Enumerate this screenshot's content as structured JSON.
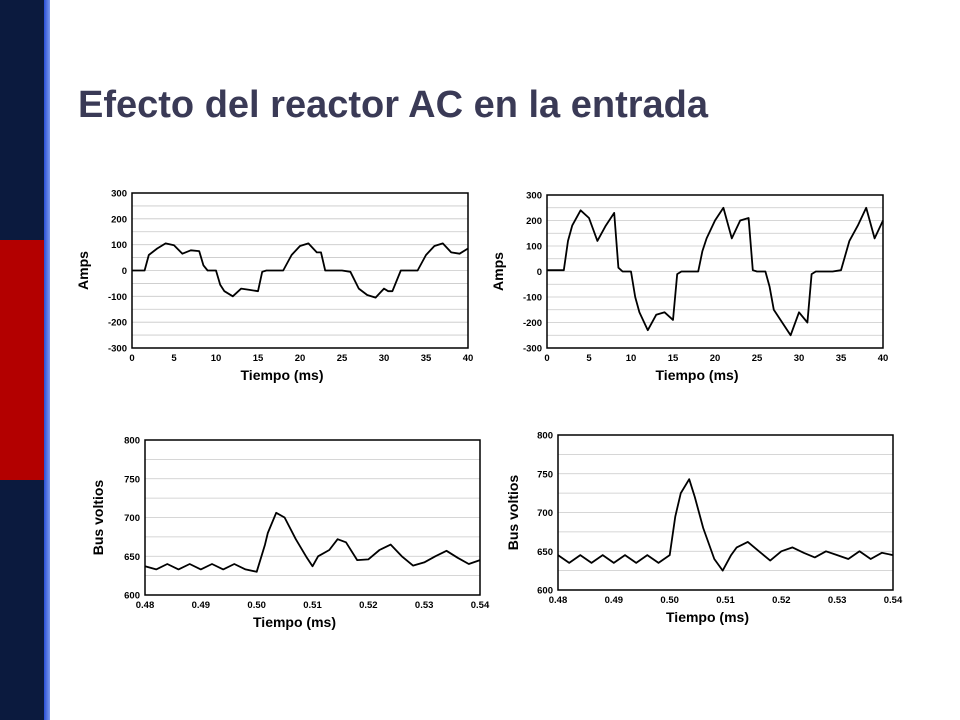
{
  "slide": {
    "title": "Efecto del reactor AC en la entrada",
    "colors": {
      "navy": "#0b1a3e",
      "red": "#b30000",
      "blue": "#2a4fd6",
      "title": "#3a3a56"
    }
  },
  "chart_data": [
    {
      "type": "line",
      "xlabel": "Tiempo (ms)",
      "ylabel": "Amps",
      "xlim": [
        0,
        40
      ],
      "ylim": [
        -300,
        300
      ],
      "xticks": [
        0,
        5,
        10,
        15,
        20,
        25,
        30,
        35,
        40
      ],
      "yticks": [
        300,
        200,
        100,
        0,
        -100,
        -200,
        -300
      ],
      "ytick_labels": [
        "300",
        "200",
        "100",
        "0",
        "-100",
        "-200",
        "-300"
      ],
      "grid": true,
      "series": [
        {
          "x": [
            0,
            1.5,
            2,
            3,
            4,
            5,
            6,
            7,
            8,
            8.5,
            9,
            10,
            10.5,
            11,
            12,
            13,
            14,
            15,
            15.5,
            16,
            17,
            18,
            19,
            20,
            21,
            22,
            22.5,
            23,
            24,
            25,
            26,
            27,
            28,
            29,
            30,
            30.5,
            31,
            32,
            33,
            34,
            35,
            36,
            37,
            38,
            39,
            40
          ],
          "y": [
            0,
            0,
            60,
            85,
            105,
            98,
            65,
            78,
            75,
            20,
            0,
            0,
            -55,
            -80,
            -100,
            -70,
            -75,
            -80,
            -5,
            0,
            0,
            0,
            60,
            95,
            105,
            70,
            70,
            0,
            0,
            0,
            -5,
            -70,
            -95,
            -105,
            -70,
            -80,
            -80,
            0,
            0,
            0,
            60,
            95,
            105,
            70,
            65,
            85
          ]
        }
      ]
    },
    {
      "type": "line",
      "xlabel": "Tiempo (ms)",
      "ylabel": "Amps",
      "xlim": [
        0,
        40
      ],
      "ylim": [
        -300,
        300
      ],
      "xticks": [
        0,
        5,
        10,
        15,
        20,
        25,
        30,
        35,
        40
      ],
      "yticks": [
        300,
        200,
        100,
        0,
        -100,
        -200,
        -300
      ],
      "ytick_labels": [
        "300",
        "200",
        "100",
        "0",
        "-100",
        "-200",
        "-300"
      ],
      "grid": true,
      "series": [
        {
          "x": [
            0,
            2,
            2.5,
            3,
            4,
            5,
            6,
            7,
            8,
            8.5,
            9,
            10,
            10.5,
            11,
            12,
            13,
            14,
            15,
            15.5,
            16,
            17,
            18,
            18.5,
            19,
            20,
            21,
            22,
            23,
            24,
            24.5,
            25,
            26,
            26.5,
            27,
            28,
            29,
            30,
            31,
            31.5,
            32,
            33,
            34,
            35,
            36,
            37,
            38,
            39,
            40
          ],
          "y": [
            5,
            5,
            120,
            180,
            240,
            210,
            120,
            180,
            230,
            15,
            0,
            0,
            -100,
            -160,
            -230,
            -170,
            -160,
            -190,
            -10,
            0,
            0,
            0,
            80,
            130,
            200,
            250,
            130,
            200,
            210,
            5,
            0,
            0,
            -60,
            -150,
            -200,
            -250,
            -160,
            -200,
            -10,
            0,
            0,
            0,
            5,
            120,
            180,
            250,
            130,
            200
          ]
        }
      ]
    },
    {
      "type": "line",
      "xlabel": "Tiempo (ms)",
      "ylabel": "Bus voltios",
      "xlim": [
        0.48,
        0.54
      ],
      "ylim": [
        600,
        800
      ],
      "xticks": [
        0.48,
        0.49,
        0.5,
        0.51,
        0.52,
        0.53,
        0.54
      ],
      "xtick_labels": [
        "0.48",
        "0.49",
        "0.50",
        "0.51",
        "0.52",
        "0.53",
        "0.54"
      ],
      "yticks": [
        600,
        650,
        700,
        750,
        800
      ],
      "grid": true,
      "series": [
        {
          "x": [
            0.48,
            0.482,
            0.484,
            0.486,
            0.488,
            0.49,
            0.492,
            0.494,
            0.496,
            0.498,
            0.5,
            0.5015,
            0.502,
            0.5035,
            0.505,
            0.507,
            0.509,
            0.51,
            0.511,
            0.513,
            0.5145,
            0.516,
            0.518,
            0.52,
            0.522,
            0.524,
            0.526,
            0.528,
            0.53,
            0.532,
            0.534,
            0.536,
            0.538,
            0.54
          ],
          "y": [
            637,
            633,
            640,
            633,
            640,
            633,
            640,
            633,
            640,
            633,
            630,
            665,
            680,
            706,
            700,
            672,
            648,
            637,
            650,
            658,
            672,
            668,
            645,
            646,
            658,
            665,
            650,
            638,
            642,
            650,
            657,
            648,
            640,
            645
          ]
        }
      ]
    },
    {
      "type": "line",
      "xlabel": "Tiempo (ms)",
      "ylabel": "Bus voltios",
      "xlim": [
        0.48,
        0.54
      ],
      "ylim": [
        600,
        800
      ],
      "xticks": [
        0.48,
        0.49,
        0.5,
        0.51,
        0.52,
        0.53,
        0.54
      ],
      "xtick_labels": [
        "0.48",
        "0.49",
        "0.50",
        "0.51",
        "0.52",
        "0.53",
        "0.54"
      ],
      "yticks": [
        600,
        650,
        700,
        750,
        800
      ],
      "grid": true,
      "series": [
        {
          "x": [
            0.48,
            0.482,
            0.484,
            0.486,
            0.488,
            0.49,
            0.492,
            0.494,
            0.496,
            0.498,
            0.5,
            0.501,
            0.502,
            0.5035,
            0.5045,
            0.506,
            0.508,
            0.5095,
            0.511,
            0.512,
            0.514,
            0.516,
            0.518,
            0.52,
            0.522,
            0.524,
            0.526,
            0.528,
            0.53,
            0.532,
            0.534,
            0.536,
            0.538,
            0.54
          ],
          "y": [
            645,
            635,
            645,
            635,
            645,
            635,
            645,
            635,
            645,
            635,
            645,
            695,
            725,
            743,
            720,
            680,
            640,
            625,
            645,
            655,
            662,
            650,
            638,
            650,
            655,
            648,
            642,
            650,
            645,
            640,
            650,
            640,
            648,
            645
          ]
        }
      ]
    }
  ]
}
